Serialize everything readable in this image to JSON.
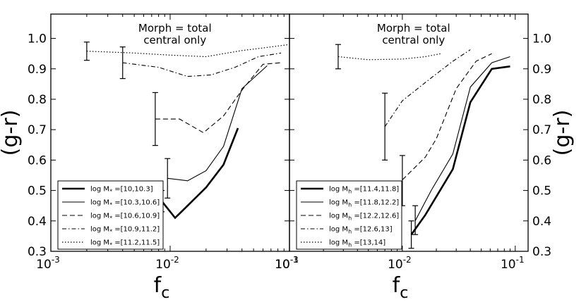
{
  "chart_data": [
    {
      "type": "line",
      "panel": "left",
      "annotation": [
        "Morph = total",
        "central only"
      ],
      "xlabel": "f",
      "xlabel_sub": "c",
      "ylabel": "(g-r)",
      "xscale": "log",
      "xlim": [
        0.001,
        0.1
      ],
      "ylim": [
        0.3,
        1.08
      ],
      "x_tick_values": [
        0.001,
        0.01,
        0.1
      ],
      "x_tick_labels": [
        {
          "base": "10",
          "exp": "-3"
        },
        {
          "base": "10",
          "exp": "-2"
        },
        {
          "base": "10",
          "exp": "-1"
        }
      ],
      "y_tick_values": [
        0.3,
        0.4,
        0.5,
        0.6,
        0.7,
        0.8,
        0.9,
        1.0
      ],
      "y_tick_labels": [
        "0.3",
        "0.4",
        "0.5",
        "0.6",
        "0.7",
        "0.8",
        "0.9",
        "1.0"
      ],
      "legend_position": "lower-left",
      "series": [
        {
          "name_prefix": "log M",
          "name_sub": "*",
          "name_suffix": " =[10,10.3]",
          "style": "thick",
          "x": [
            0.0085,
            0.011,
            0.014,
            0.02,
            0.028,
            0.037
          ],
          "y": [
            0.465,
            0.41,
            0.45,
            0.51,
            0.585,
            0.705
          ],
          "errorbar": {
            "x": 0.0085,
            "y": 0.465,
            "ylow": 0.43,
            "yhigh": 0.5
          }
        },
        {
          "name_prefix": "log M",
          "name_sub": "*",
          "name_suffix": " =[10.3,10.6]",
          "style": "solid",
          "x": [
            0.0095,
            0.014,
            0.02,
            0.028,
            0.04,
            0.065
          ],
          "y": [
            0.54,
            0.532,
            0.565,
            0.645,
            0.835,
            0.91
          ],
          "errorbar": {
            "x": 0.0095,
            "y": 0.54,
            "ylow": 0.475,
            "yhigh": 0.605
          }
        },
        {
          "name_prefix": "log M",
          "name_sub": "*",
          "name_suffix": " =[10.6,10.9]",
          "style": "dashed",
          "x": [
            0.0075,
            0.012,
            0.019,
            0.028,
            0.04,
            0.06,
            0.085
          ],
          "y": [
            0.735,
            0.735,
            0.69,
            0.745,
            0.83,
            0.915,
            0.92
          ],
          "errorbar": {
            "x": 0.0075,
            "y": 0.735,
            "ylow": 0.648,
            "yhigh": 0.822
          }
        },
        {
          "name_prefix": "log M",
          "name_sub": "*",
          "name_suffix": " =[10.9,11.2]",
          "style": "dashdot",
          "x": [
            0.004,
            0.008,
            0.014,
            0.022,
            0.035,
            0.055,
            0.085
          ],
          "y": [
            0.92,
            0.905,
            0.875,
            0.88,
            0.905,
            0.94,
            0.952
          ],
          "errorbar": {
            "x": 0.004,
            "y": 0.92,
            "ylow": 0.868,
            "yhigh": 0.972
          }
        },
        {
          "name_prefix": "log M",
          "name_sub": "*",
          "name_suffix": " =[11.2,11.5]",
          "style": "dotted",
          "x": [
            0.002,
            0.005,
            0.01,
            0.02,
            0.04,
            0.07,
            0.1
          ],
          "y": [
            0.958,
            0.952,
            0.945,
            0.94,
            0.96,
            0.972,
            0.98
          ],
          "errorbar": {
            "x": 0.002,
            "y": 0.958,
            "ylow": 0.928,
            "yhigh": 0.988
          }
        }
      ]
    },
    {
      "type": "line",
      "panel": "right",
      "annotation": [
        "Morph = total",
        "central only"
      ],
      "xlabel": "f",
      "xlabel_sub": "c",
      "ylabel": "(g-r)",
      "xscale": "log",
      "xlim": [
        0.001,
        0.13
      ],
      "ylim": [
        0.3,
        1.08
      ],
      "x_tick_values": [
        0.001,
        0.01,
        0.1
      ],
      "x_tick_labels": [
        {
          "base": "10",
          "exp": "-3"
        },
        {
          "base": "10",
          "exp": "-2"
        },
        {
          "base": "10",
          "exp": "-1"
        }
      ],
      "y_tick_values": [
        0.3,
        0.4,
        0.5,
        0.6,
        0.7,
        0.8,
        0.9,
        1.0
      ],
      "y_tick_labels": [
        "0.3",
        "0.4",
        "0.5",
        "0.6",
        "0.7",
        "0.8",
        "0.9",
        "1.0"
      ],
      "legend_position": "lower-left",
      "series": [
        {
          "name_prefix": "log M",
          "name_sub": "h",
          "name_suffix": " =[11.4,11.8]",
          "style": "thick",
          "x": [
            0.012,
            0.016,
            0.028,
            0.04,
            0.062,
            0.09
          ],
          "y": [
            0.355,
            0.42,
            0.57,
            0.79,
            0.9,
            0.908
          ],
          "errorbar": {
            "x": 0.012,
            "y": 0.355,
            "ylow": 0.31,
            "yhigh": 0.4
          }
        },
        {
          "name_prefix": "log M",
          "name_sub": "h",
          "name_suffix": " =[11.8,12.2]",
          "style": "solid",
          "x": [
            0.013,
            0.018,
            0.028,
            0.04,
            0.062,
            0.09
          ],
          "y": [
            0.4,
            0.5,
            0.62,
            0.84,
            0.92,
            0.94
          ],
          "errorbar": {
            "x": 0.013,
            "y": 0.4,
            "ylow": 0.355,
            "yhigh": 0.45
          }
        },
        {
          "name_prefix": "log M",
          "name_sub": "h",
          "name_suffix": " =[12.2,12.6]",
          "style": "dashed",
          "x": [
            0.01,
            0.016,
            0.02,
            0.03,
            0.045,
            0.062
          ],
          "y": [
            0.535,
            0.61,
            0.67,
            0.835,
            0.925,
            0.95
          ],
          "errorbar": {
            "x": 0.01,
            "y": 0.535,
            "ylow": 0.45,
            "yhigh": 0.615
          }
        },
        {
          "name_prefix": "log M",
          "name_sub": "h",
          "name_suffix": " =[12.6,13]",
          "style": "dashdot",
          "x": [
            0.007,
            0.01,
            0.018,
            0.028,
            0.04
          ],
          "y": [
            0.71,
            0.795,
            0.87,
            0.925,
            0.963
          ],
          "errorbar": {
            "x": 0.007,
            "y": 0.71,
            "ylow": 0.6,
            "yhigh": 0.82
          }
        },
        {
          "name_prefix": "log M",
          "name_sub": "h",
          "name_suffix": " =[13,14]",
          "style": "dotted",
          "x": [
            0.0027,
            0.005,
            0.01,
            0.016,
            0.022
          ],
          "y": [
            0.94,
            0.93,
            0.932,
            0.94,
            0.95
          ],
          "errorbar": {
            "x": 0.0027,
            "y": 0.94,
            "ylow": 0.9,
            "yhigh": 0.98
          }
        }
      ]
    }
  ]
}
